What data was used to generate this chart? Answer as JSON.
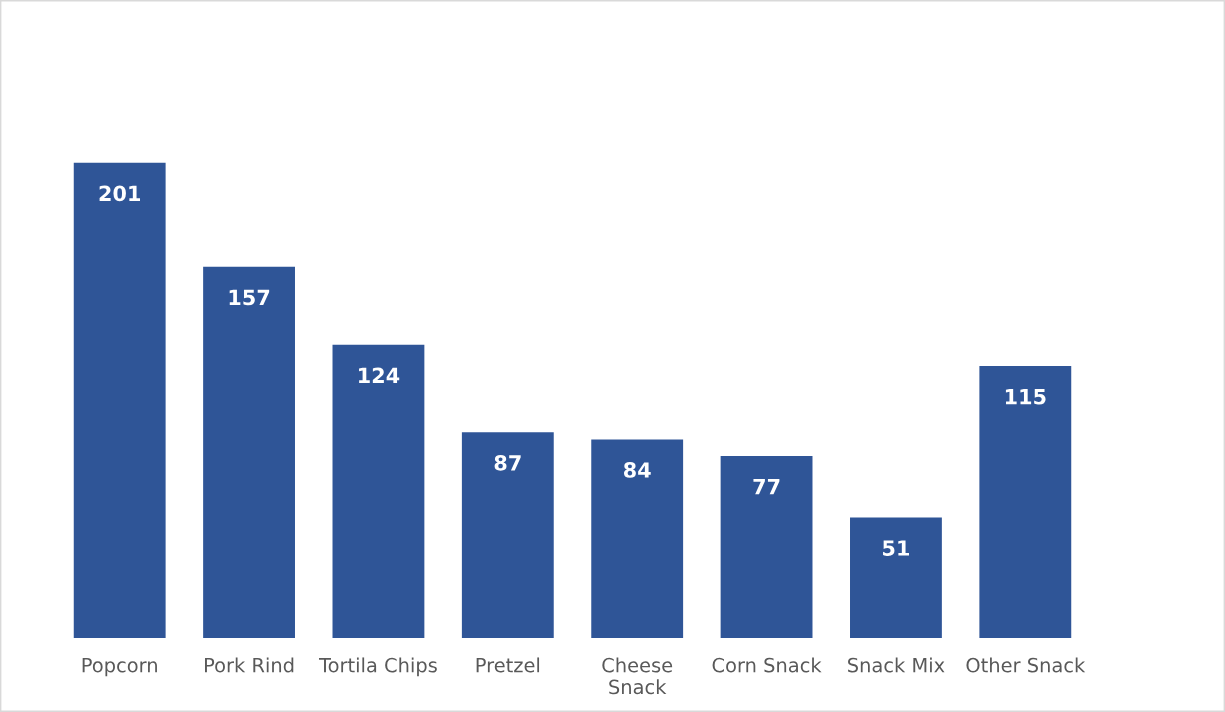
{
  "chart_data": {
    "type": "bar",
    "categories": [
      "Popcorn",
      "Pork Rind",
      "Tortila Chips",
      "Pretzel",
      "Cheese\nSnack",
      "Corn Snack",
      "Snack Mix",
      "Other Snack"
    ],
    "values": [
      201,
      157,
      124,
      87,
      84,
      77,
      51,
      115
    ],
    "color": "#2f5597",
    "tick_labels": "x",
    "data_labels": true
  }
}
